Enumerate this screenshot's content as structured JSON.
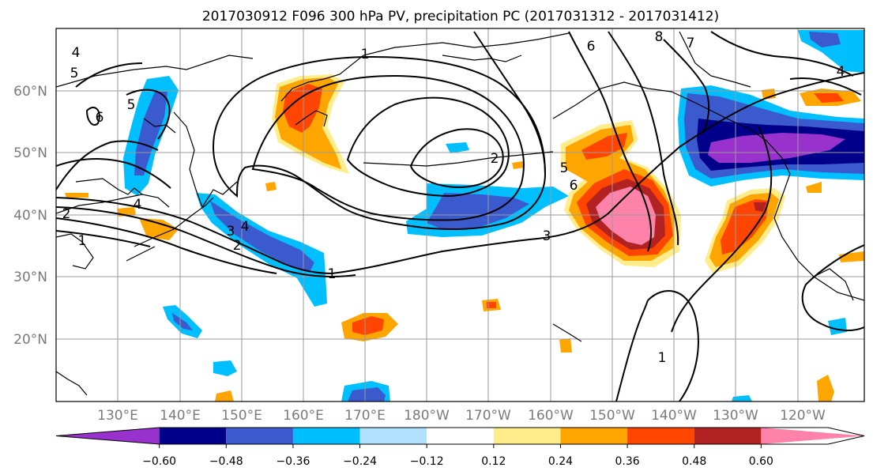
{
  "title": "2017030912 F096 300 hPa PV, precipitation PC (2017031312 - 2017031412)",
  "map": {
    "lon_labels": [
      "130°E",
      "140°E",
      "150°E",
      "160°E",
      "170°E",
      "180°W",
      "170°W",
      "160°W",
      "150°W",
      "140°W",
      "130°W",
      "120°W"
    ],
    "lat_labels": [
      "60°N",
      "50°N",
      "40°N",
      "30°N",
      "20°N"
    ]
  },
  "colorbar": {
    "colors": [
      "#9932cc",
      "#00008b",
      "#3a5acd",
      "#00bfff",
      "#b0e2ff",
      "#ffffff",
      "#ffec8b",
      "#ffa500",
      "#ff4500",
      "#b22222",
      "#ff82ab"
    ],
    "ticks": [
      "−0.60",
      "−0.48",
      "−0.36",
      "−0.24",
      "−0.12",
      "0.12",
      "0.24",
      "0.36",
      "0.48",
      "0.60"
    ]
  },
  "pv_contour_labels": [
    "4",
    "5",
    "5",
    "6",
    "1",
    "6",
    "8",
    "7",
    "4",
    "4",
    "2",
    "5",
    "6",
    "3",
    "3",
    "4",
    "2",
    "1",
    "1",
    "2",
    "1"
  ]
}
